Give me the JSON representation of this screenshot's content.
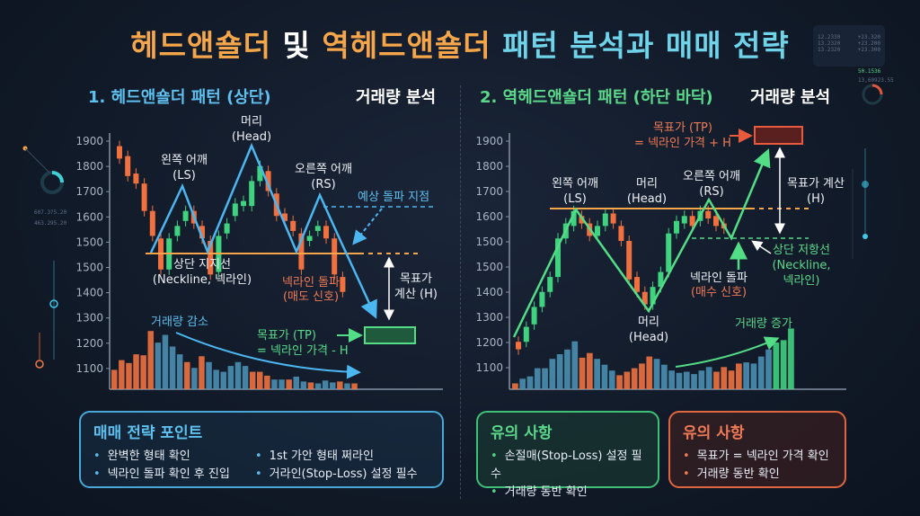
{
  "colors": {
    "up": "#3fd27f",
    "down": "#f0713f",
    "vol_blue": "#4a8fb0",
    "neck": "#f5a54a",
    "blue_line": "#4bb6f0",
    "green_line": "#52dd86",
    "tp_red": "#e85a3e"
  },
  "title": {
    "part1": "헤드앤숄더",
    "part2": "및",
    "part3": "역헤드앤숄더",
    "part4": "패턴 분석과 매매 전략"
  },
  "left": {
    "heading": "1. 헤드앤숄더 패턴 (상단)",
    "volume_heading": "거래량 분석",
    "y_ticks": [
      "1900",
      "1800",
      "1700",
      "1600",
      "1500",
      "1500",
      "1400",
      "1300",
      "1200",
      "1100"
    ],
    "labels": {
      "head": "머리\n(Head)",
      "ls": "왼쪽 어깨\n(LS)",
      "rs": "오른쪽 어깨\n(RS)",
      "expected": "예상 돌파 지점",
      "neckline": "상단 지지선\n(Neckline, 넥라인)",
      "break": "넥라인 돌파",
      "signal": "(매도 신호)",
      "target_calc": "목표가\n계산 (H)",
      "volume": "거래량 감소",
      "tp": "목표가 (TP)\n= 넥라인 가격 - H"
    },
    "candles": [
      [
        1880,
        1830
      ],
      [
        1840,
        1760
      ],
      [
        1770,
        1730
      ],
      [
        1730,
        1620
      ],
      [
        1620,
        1520
      ],
      [
        1510,
        1490
      ],
      [
        1490,
        1510
      ],
      [
        1520,
        1560
      ],
      [
        1580,
        1620
      ],
      [
        1620,
        1570
      ],
      [
        1560,
        1510
      ],
      [
        1500,
        1470
      ],
      [
        1480,
        1520
      ],
      [
        1530,
        1570
      ],
      [
        1600,
        1650
      ],
      [
        1640,
        1660
      ],
      [
        1640,
        1740
      ],
      [
        1740,
        1800
      ],
      [
        1780,
        1700
      ],
      [
        1690,
        1600
      ],
      [
        1610,
        1580
      ],
      [
        1580,
        1540
      ],
      [
        1530,
        1490
      ],
      [
        1500,
        1520
      ],
      [
        1540,
        1560
      ],
      [
        1560,
        1510
      ],
      [
        1510,
        1470
      ],
      [
        1460,
        1400
      ]
    ],
    "volume": [
      [
        "r",
        20
      ],
      [
        "r",
        30
      ],
      [
        "r",
        27
      ],
      [
        "r",
        36
      ],
      [
        "r",
        35
      ],
      [
        "r",
        60
      ],
      [
        "b",
        48
      ],
      [
        "b",
        56
      ],
      [
        "b",
        44
      ],
      [
        "b",
        36
      ],
      [
        "r",
        28
      ],
      [
        "b",
        22
      ],
      [
        "r",
        34
      ],
      [
        "b",
        28
      ],
      [
        "b",
        20
      ],
      [
        "b",
        18
      ],
      [
        "b",
        24
      ],
      [
        "b",
        28
      ],
      [
        "b",
        24
      ],
      [
        "r",
        18
      ],
      [
        "r",
        18
      ],
      [
        "r",
        14
      ],
      [
        "b",
        10
      ],
      [
        "b",
        10
      ],
      [
        "r",
        10
      ],
      [
        "b",
        13
      ],
      [
        "b",
        8
      ],
      [
        "r",
        7
      ],
      [
        "b",
        6
      ],
      [
        "b",
        9
      ],
      [
        "b",
        7
      ],
      [
        "r",
        8
      ],
      [
        "b",
        6
      ],
      [
        "r",
        6
      ]
    ],
    "strategy": {
      "title": "매매 전략 포인트",
      "items": [
        "완벽한 형태 확인",
        "1st 가안 형태 쩌라인",
        "넥라인 돌파 확인 후 진입",
        "거라인(Stop-Loss) 설정 필수"
      ]
    }
  },
  "right": {
    "heading": "2. 역헤드앤숄더 패턴 (하단 바닥)",
    "volume_heading": "거래량 분석",
    "y_ticks": [
      "1900",
      "1800",
      "1700",
      "1600",
      "1500",
      "1500",
      "1400",
      "1300",
      "1200",
      "1100"
    ],
    "labels": {
      "tp": "목표가 (TP)\n= 넥라인 가격 + H",
      "ls": "왼쪽 어깨\n(LS)",
      "head_top": "머리\n(Head)",
      "rs": "오른쪽 어깨\n(RS)",
      "target_calc": "목표가 계산\n(H)",
      "resistance": "상단 저항선\n(Neckline,\n넥라인)",
      "break": "넥라인 돌파",
      "signal": "(매수 신호)",
      "head": "머리\n(Head)",
      "volume": "거래량 증가"
    },
    "candles": [
      [
        1200,
        1170
      ],
      [
        1200,
        1260
      ],
      [
        1270,
        1340
      ],
      [
        1340,
        1400
      ],
      [
        1400,
        1460
      ],
      [
        1460,
        1510
      ],
      [
        1510,
        1570
      ],
      [
        1560,
        1620
      ],
      [
        1600,
        1570
      ],
      [
        1570,
        1520
      ],
      [
        1520,
        1560
      ],
      [
        1560,
        1610
      ],
      [
        1610,
        1570
      ],
      [
        1560,
        1500
      ],
      [
        1500,
        1450
      ],
      [
        1460,
        1400
      ],
      [
        1400,
        1350
      ],
      [
        1350,
        1420
      ],
      [
        1420,
        1480
      ],
      [
        1480,
        1530
      ],
      [
        1530,
        1580
      ],
      [
        1570,
        1600
      ],
      [
        1600,
        1560
      ],
      [
        1580,
        1620
      ],
      [
        1620,
        1590
      ],
      [
        1600,
        1560
      ],
      [
        1570,
        1550
      ]
    ],
    "volume": [
      [
        "r",
        5
      ],
      [
        "b",
        9
      ],
      [
        "b",
        11
      ],
      [
        "b",
        18
      ],
      [
        "b",
        18
      ],
      [
        "b",
        26
      ],
      [
        "b",
        30
      ],
      [
        "b",
        34
      ],
      [
        "b",
        41
      ],
      [
        "r",
        27
      ],
      [
        "r",
        31
      ],
      [
        "b",
        26
      ],
      [
        "b",
        21
      ],
      [
        "b",
        16
      ],
      [
        "r",
        12
      ],
      [
        "r",
        15
      ],
      [
        "r",
        18
      ],
      [
        "r",
        22
      ],
      [
        "r",
        28
      ],
      [
        "b",
        26
      ],
      [
        "b",
        21
      ],
      [
        "b",
        16
      ],
      [
        "b",
        14
      ],
      [
        "b",
        15
      ],
      [
        "b",
        13
      ],
      [
        "b",
        16
      ],
      [
        "b",
        19
      ],
      [
        "r",
        15
      ],
      [
        "r",
        19
      ],
      [
        "r",
        16
      ],
      [
        "r",
        22
      ],
      [
        "b",
        23
      ],
      [
        "b",
        22
      ],
      [
        "b",
        28
      ],
      [
        "b",
        34
      ],
      [
        "g",
        40
      ],
      [
        "g",
        42
      ],
      [
        "g",
        52
      ]
    ],
    "caution_green": {
      "title": "유의 사항",
      "items": [
        "손절매(Stop-Loss) 설정 필수",
        "거래량 동반 확인"
      ]
    },
    "caution_red": {
      "title": "유의 사항",
      "items": [
        "목표가 = 넥라인 가격 확인",
        "거래량 동반 확인"
      ]
    }
  },
  "decor": {
    "left_values": [
      "607.3?5.20",
      "463.295.20"
    ],
    "right_values": [
      "50.1536",
      "13,60923.55"
    ],
    "top_right": [
      "12.2330",
      "13.2320",
      "13.2320"
    ],
    "top_right_b": [
      "+23.320",
      "+23.200",
      "+23.300"
    ]
  }
}
